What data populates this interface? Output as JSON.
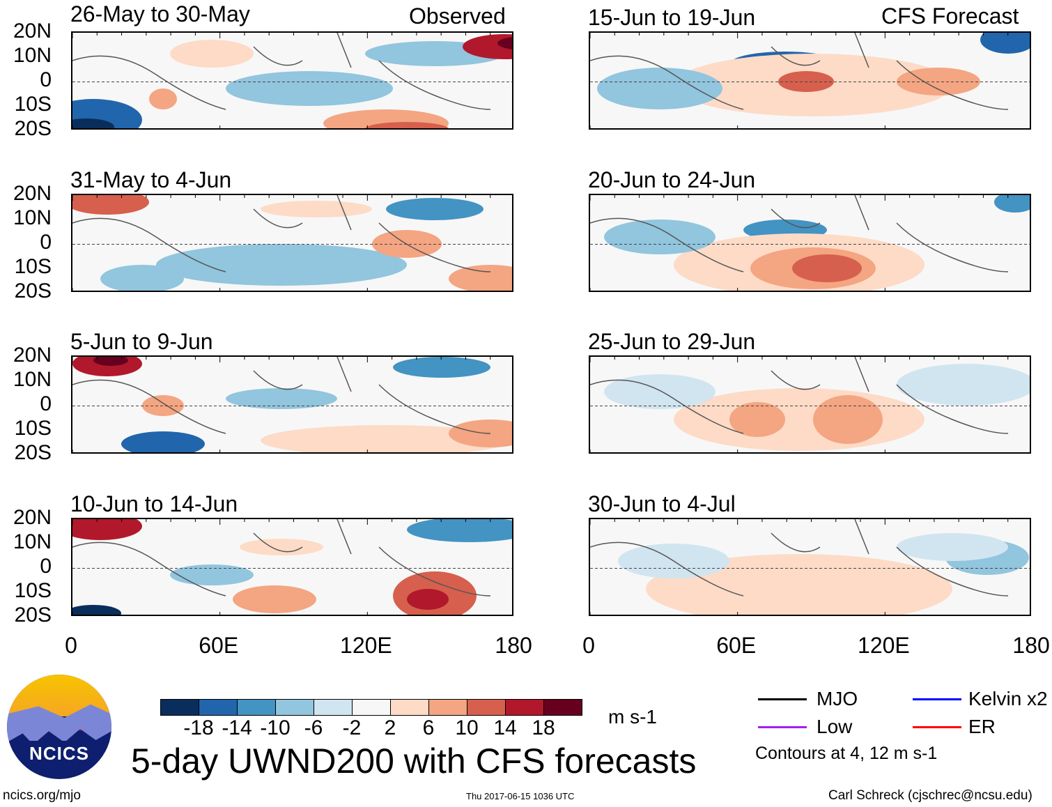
{
  "title": "5-day UWND200 with CFS forecasts",
  "column_headers": {
    "observed": "Observed",
    "forecast": "CFS Forecast"
  },
  "panels": [
    {
      "label": "26-May to 30-May",
      "type": "observed"
    },
    {
      "label": "31-May to 4-Jun",
      "type": "observed"
    },
    {
      "label": "5-Jun to 9-Jun",
      "type": "observed"
    },
    {
      "label": "10-Jun to 14-Jun",
      "type": "observed"
    },
    {
      "label": "15-Jun to 19-Jun",
      "type": "forecast"
    },
    {
      "label": "20-Jun to 24-Jun",
      "type": "forecast"
    },
    {
      "label": "25-Jun to 29-Jun",
      "type": "forecast"
    },
    {
      "label": "30-Jun to 4-Jul",
      "type": "forecast"
    }
  ],
  "chart_data": {
    "type": "heatmap",
    "variable": "200 hPa zonal wind anomaly",
    "units": "m s-1",
    "xlim": [
      0,
      180
    ],
    "ylim": [
      -20,
      20
    ],
    "x_ticks": [
      "0",
      "60E",
      "120E",
      "180"
    ],
    "y_ticks": [
      "20N",
      "10N",
      "0",
      "10S",
      "20S"
    ],
    "colorbar": {
      "levels": [
        "-18",
        "-14",
        "-10",
        "-6",
        "-2",
        "2",
        "6",
        "10",
        "14",
        "18"
      ],
      "colors": [
        "#0a2e5c",
        "#2166ac",
        "#4393c3",
        "#92c5de",
        "#d1e5f0",
        "#f7f7f7",
        "#fddbc7",
        "#f4a582",
        "#d6604d",
        "#b2182b",
        "#67001f"
      ],
      "units": "m s-1"
    },
    "legend": [
      {
        "name": "MJO",
        "color": "#000000"
      },
      {
        "name": "Kelvin x2",
        "color": "#0000ff"
      },
      {
        "name": "Low",
        "color": "#a020f0"
      },
      {
        "name": "ER",
        "color": "#ff0000"
      }
    ],
    "contour_note": "Contours at 4, 12 m s-1"
  },
  "footer": {
    "left": "ncics.org/mjo",
    "center": "Thu 2017-06-15 1036 UTC",
    "right": "Carl Schreck (cjschrec@ncsu.edu)",
    "logo_text": "NCICS"
  }
}
